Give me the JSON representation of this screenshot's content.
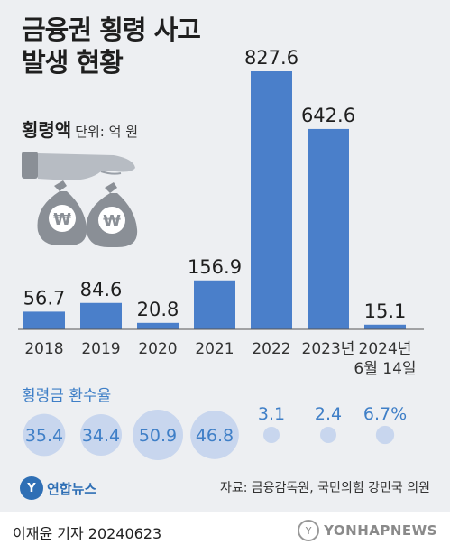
{
  "header": {
    "title_line1": "금융권 횡령 사고",
    "title_line2": "발생 현황",
    "amount_label": "횡령액",
    "unit_label": "단위: 억 원"
  },
  "chart_data": {
    "type": "bar",
    "categories": [
      "2018",
      "2019",
      "2020",
      "2021",
      "2022",
      "2023년",
      "2024년 6월 14일"
    ],
    "values": [
      56.7,
      84.6,
      20.8,
      156.9,
      827.6,
      642.6,
      15.1
    ],
    "value_labels": [
      "56.7",
      "84.6",
      "20.8",
      "156.9",
      "827.6",
      "642.6",
      "15.1"
    ],
    "title": "금융권 횡령 사고 발생 현황",
    "ylabel": "횡령액",
    "unit": "단위: 억 원",
    "ylim": [
      0,
      827.6
    ],
    "grid": false,
    "bar_color": "#4a7fca",
    "recovery_rate": {
      "title": "횡령금 환수율",
      "values": [
        35.4,
        34.4,
        50.9,
        46.8,
        3.1,
        2.4,
        6.7
      ],
      "labels": [
        "35.4",
        "34.4",
        "50.9",
        "46.8",
        "3.1",
        "2.4",
        "6.7%"
      ],
      "bubble_color": "#c8d6ee",
      "text_color": "#3f7fc7"
    }
  },
  "source": "자료: 금융감독원, 국민의힘 강민국 의원",
  "logo": {
    "mark": "Y",
    "text": "연합뉴스"
  },
  "byline": "이재윤 기자  20240623",
  "watermark": {
    "mark": "Y",
    "text": "YONHAPNEWS"
  },
  "icons": [
    "money-bag-hand-icon"
  ]
}
